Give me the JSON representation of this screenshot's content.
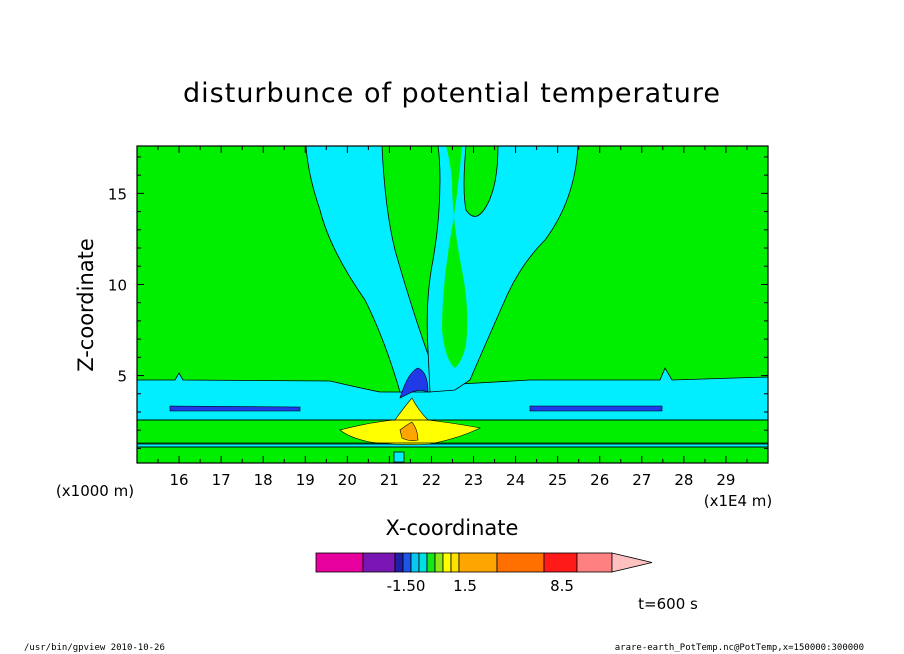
{
  "chart_data": {
    "type": "contour",
    "title": "disturbunce of potential temperature",
    "xlabel": "X-coordinate",
    "ylabel": "Z-coordinate",
    "x_unit_label": "(x1E4 m)",
    "y_unit_label": "(x1000 m)",
    "xlim": [
      15,
      30
    ],
    "ylim": [
      0.2,
      17.6
    ],
    "x_ticks": [
      16,
      17,
      18,
      19,
      20,
      21,
      22,
      23,
      24,
      25,
      26,
      27,
      28,
      29
    ],
    "y_ticks": [
      5,
      10,
      15
    ],
    "colorbar": {
      "shown_labels": [
        "-1.50",
        "1.5",
        "8.5"
      ],
      "colors": [
        "#e6009e",
        "#7a17b4",
        "#1f1fa8",
        "#1a57e8",
        "#08c8f0",
        "#00e0e0",
        "#17e617",
        "#8ee617",
        "#ffff00",
        "#ffe000",
        "#ffa500",
        "#ff7000",
        "#ff1a1a",
        "#ff8080",
        "#ffc0c0"
      ]
    },
    "fill_colors": {
      "background": "#00ee00",
      "cyan": "#00eeff",
      "blue": "#1f3ae6",
      "yellow": "#ffff00",
      "orange": "#ffa500"
    },
    "annotation": "t=600 s"
  },
  "footer": {
    "left": "/usr/bin/gpview   2010-10-26",
    "right": "arare-earth_PotTemp.nc@PotTemp,x=150000:300000"
  }
}
